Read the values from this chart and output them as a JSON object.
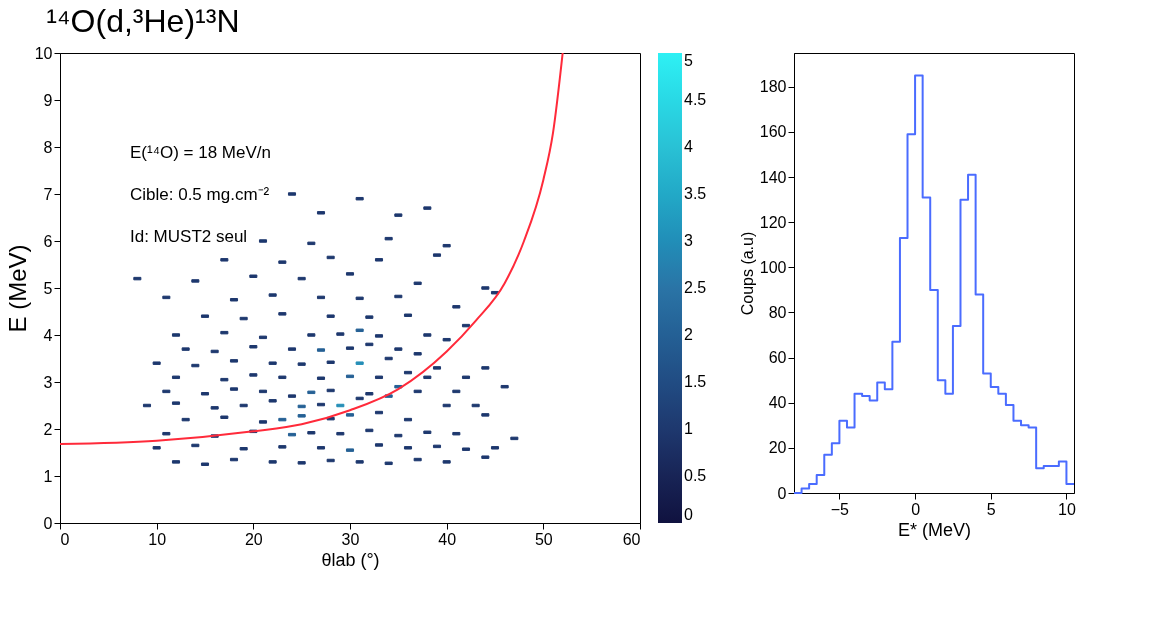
{
  "chart_data": [
    {
      "type": "scatter",
      "title": "¹⁴O(d,³He)¹³N",
      "xlabel": "θlab (°)",
      "ylabel": "E (MeV)",
      "annotations": [
        "E(¹⁴O) = 18 MeV/n",
        "Cible: 0.5 mg.cm⁻²",
        "Id: MUST2 seul"
      ],
      "xlim": [
        0,
        60
      ],
      "ylim": [
        0,
        10
      ],
      "xticks": [
        0,
        10,
        20,
        30,
        40,
        50,
        60
      ],
      "yticks": [
        0,
        1,
        2,
        3,
        4,
        5,
        6,
        7,
        8,
        9,
        10
      ],
      "clim": [
        0,
        5
      ],
      "cticks": [
        0,
        0.5,
        1,
        1.5,
        2,
        2.5,
        3,
        3.5,
        4,
        4.5,
        5
      ],
      "series": [
        {
          "type": "scatter",
          "marker": "square",
          "x": [
            12,
            15,
            18,
            22,
            25,
            28,
            31,
            34,
            37,
            40,
            44,
            10,
            14,
            19,
            23,
            27,
            30,
            33,
            36,
            39,
            42,
            45,
            11,
            16,
            20,
            24,
            26,
            29,
            32,
            35,
            38,
            41,
            47,
            13,
            17,
            21,
            23,
            25,
            28,
            30,
            33,
            36,
            40,
            44,
            9,
            12,
            16,
            19,
            22,
            25,
            27,
            29,
            31,
            34,
            37,
            43,
            11,
            15,
            18,
            21,
            24,
            26,
            28,
            32,
            35,
            38,
            41,
            46,
            12,
            17,
            20,
            23,
            27,
            30,
            33,
            36,
            39,
            42,
            10,
            14,
            18,
            22,
            25,
            28,
            31,
            34,
            37,
            44,
            13,
            16,
            20,
            24,
            27,
            30,
            32,
            35,
            40,
            12,
            17,
            21,
            26,
            29,
            31,
            33,
            38,
            42,
            15,
            19,
            23,
            28,
            32,
            36,
            45,
            11,
            18,
            22,
            27,
            31,
            35,
            41,
            8,
            14,
            20,
            25,
            30,
            37,
            44,
            17,
            23,
            28,
            33,
            39,
            21,
            26,
            34,
            40,
            27,
            35,
            38,
            24,
            31
          ],
          "values": [
            1.3,
            1.25,
            1.35,
            1.3,
            1.28,
            1.33,
            1.3,
            1.27,
            1.35,
            1.3,
            1.4,
            1.6,
            1.65,
            1.58,
            1.62,
            1.6,
            1.55,
            1.66,
            1.6,
            1.63,
            1.57,
            1.6,
            1.9,
            1.85,
            1.95,
            1.88,
            1.92,
            1.9,
            1.97,
            1.86,
            1.93,
            1.9,
            1.8,
            2.2,
            2.25,
            2.15,
            2.2,
            2.28,
            2.22,
            2.3,
            2.35,
            2.2,
            2.5,
            2.3,
            2.5,
            2.55,
            2.45,
            2.5,
            2.6,
            2.48,
            2.52,
            2.5,
            2.65,
            2.7,
            2.8,
            2.5,
            2.8,
            2.75,
            2.85,
            2.8,
            2.7,
            2.78,
            2.82,
            2.75,
            2.9,
            3.1,
            2.8,
            2.9,
            3.1,
            3.05,
            3.15,
            3.1,
            3.08,
            3.12,
            3.1,
            3.2,
            3.3,
            3.1,
            3.4,
            3.35,
            3.45,
            3.4,
            3.38,
            3.42,
            3.4,
            3.5,
            3.6,
            3.3,
            3.7,
            3.65,
            3.75,
            3.7,
            3.68,
            3.72,
            3.8,
            3.7,
            3.9,
            4.0,
            4.05,
            3.95,
            4.0,
            4.02,
            4.1,
            3.98,
            4.0,
            4.2,
            4.4,
            4.35,
            4.45,
            4.4,
            4.38,
            4.42,
            4.9,
            4.8,
            4.75,
            4.85,
            4.8,
            4.78,
            4.82,
            4.6,
            5.2,
            5.15,
            5.25,
            5.2,
            5.3,
            5.1,
            5.0,
            5.6,
            5.55,
            5.65,
            5.6,
            5.7,
            6.0,
            5.95,
            6.05,
            5.9,
            6.6,
            6.55,
            6.7,
            7.0,
            6.9
          ],
          "cvalues": [
            1,
            1,
            1,
            1,
            1,
            1,
            1,
            1,
            1,
            1,
            1,
            1,
            1,
            1,
            1,
            1,
            2,
            1,
            1,
            1,
            1,
            1,
            1,
            1,
            1,
            2,
            1,
            1,
            1,
            1,
            1,
            1,
            1,
            1,
            1,
            1,
            2,
            2,
            1,
            2,
            1,
            1,
            1,
            1,
            1,
            1,
            1,
            1,
            1,
            2,
            1,
            3,
            1,
            2,
            1,
            1,
            1,
            1,
            1,
            1,
            1,
            2,
            1,
            1,
            2,
            1,
            1,
            1,
            1,
            1,
            1,
            1,
            1,
            2,
            1,
            1,
            1,
            1,
            1,
            1,
            1,
            1,
            1,
            1,
            3,
            1,
            1,
            1,
            1,
            1,
            1,
            1,
            2,
            1,
            1,
            1,
            1,
            1,
            1,
            1,
            1,
            1,
            2,
            1,
            1,
            1,
            1,
            1,
            1,
            1,
            1,
            1,
            1,
            1,
            1,
            1,
            1,
            1,
            1,
            1,
            1,
            1,
            1,
            1,
            1,
            1,
            1,
            1,
            1,
            1,
            1,
            1,
            1,
            1,
            1,
            1,
            1,
            1,
            1,
            1,
            1
          ],
          "colors": [
            "#1d386e",
            "#1d386e",
            "#1d386e",
            "#1d386e",
            "#1d386e",
            "#1d386e",
            "#1d386e",
            "#1d386e",
            "#1d386e",
            "#1d386e",
            "#1d386e",
            "#1d386e",
            "#1d386e",
            "#1d386e",
            "#1d386e",
            "#1d386e",
            "#266094",
            "#1d386e",
            "#1d386e",
            "#1d386e",
            "#1d386e",
            "#1d386e",
            "#1d386e",
            "#1d386e",
            "#1d386e",
            "#266094",
            "#1d386e",
            "#1d386e",
            "#1d386e",
            "#1d386e",
            "#1d386e",
            "#1d386e",
            "#1d386e",
            "#1d386e",
            "#1d386e",
            "#1d386e",
            "#266094",
            "#266094",
            "#1d386e",
            "#266094",
            "#1d386e",
            "#1d386e",
            "#1d386e",
            "#1d386e",
            "#1d386e",
            "#1d386e",
            "#1d386e",
            "#1d386e",
            "#1d386e",
            "#266094",
            "#1d386e",
            "#2a8eb5",
            "#1d386e",
            "#266094",
            "#1d386e",
            "#1d386e",
            "#1d386e",
            "#1d386e",
            "#1d386e",
            "#1d386e",
            "#1d386e",
            "#266094",
            "#1d386e",
            "#1d386e",
            "#266094",
            "#1d386e",
            "#1d386e",
            "#1d386e",
            "#1d386e",
            "#1d386e",
            "#1d386e",
            "#1d386e",
            "#1d386e",
            "#266094",
            "#1d386e",
            "#1d386e",
            "#1d386e",
            "#1d386e",
            "#1d386e",
            "#1d386e",
            "#1d386e",
            "#1d386e",
            "#1d386e",
            "#1d386e",
            "#2a8eb5",
            "#1d386e",
            "#1d386e",
            "#1d386e",
            "#1d386e",
            "#1d386e",
            "#1d386e",
            "#1d386e",
            "#266094",
            "#1d386e",
            "#1d386e",
            "#1d386e",
            "#1d386e",
            "#1d386e",
            "#1d386e",
            "#1d386e",
            "#1d386e",
            "#1d386e",
            "#266094",
            "#1d386e",
            "#1d386e",
            "#1d386e",
            "#1d386e",
            "#1d386e",
            "#1d386e",
            "#1d386e",
            "#1d386e",
            "#1d386e",
            "#1d386e",
            "#1d386e",
            "#1d386e",
            "#1d386e",
            "#1d386e",
            "#1d386e",
            "#1d386e",
            "#1d386e",
            "#1d386e",
            "#1d386e",
            "#1d386e",
            "#1d386e",
            "#1d386e",
            "#1d386e",
            "#1d386e",
            "#1d386e",
            "#1d386e",
            "#1d386e",
            "#1d386e",
            "#1d386e",
            "#1d386e",
            "#1d386e",
            "#1d386e",
            "#1d386e",
            "#1d386e",
            "#1d386e",
            "#1d386e",
            "#1d386e",
            "#1d386e"
          ]
        },
        {
          "type": "line",
          "marker": "none",
          "color": "#ff2a3a",
          "x": [
            0,
            10,
            20,
            25,
            30,
            35,
            40,
            43,
            46,
            48,
            50,
            51,
            52
          ],
          "values": [
            1.68,
            1.75,
            1.95,
            2.1,
            2.4,
            2.85,
            3.65,
            4.3,
            5.1,
            6.0,
            7.3,
            8.3,
            10
          ]
        }
      ]
    },
    {
      "type": "histogram",
      "xlabel": "E* (MeV)",
      "ylabel": "Coups (a.u)",
      "color": "#4a6cff",
      "xlim": [
        -8,
        10.5
      ],
      "ylim": [
        0,
        195
      ],
      "xticks": [
        -5,
        0,
        5,
        10
      ],
      "yticks": [
        0,
        20,
        40,
        60,
        80,
        100,
        120,
        140,
        160,
        180
      ],
      "bins": [
        -8,
        -7.5,
        -7,
        -6.5,
        -6,
        -5.5,
        -5,
        -4.5,
        -4,
        -3.5,
        -3,
        -2.5,
        -2,
        -1.5,
        -1,
        -0.5,
        0,
        0.5,
        1,
        1.5,
        2,
        2.5,
        3,
        3.5,
        4,
        4.5,
        5,
        5.5,
        6,
        6.5,
        7,
        7.5,
        8,
        8.5,
        9,
        9.5,
        10,
        10.5
      ],
      "values": [
        0,
        2,
        4,
        8,
        17,
        22,
        32,
        29,
        44,
        43,
        41,
        49,
        46,
        67,
        113,
        159,
        185,
        131,
        90,
        50,
        44,
        74,
        130,
        141,
        88,
        53,
        47,
        44,
        39,
        32,
        30,
        29,
        11,
        12,
        12,
        14,
        4
      ]
    }
  ]
}
